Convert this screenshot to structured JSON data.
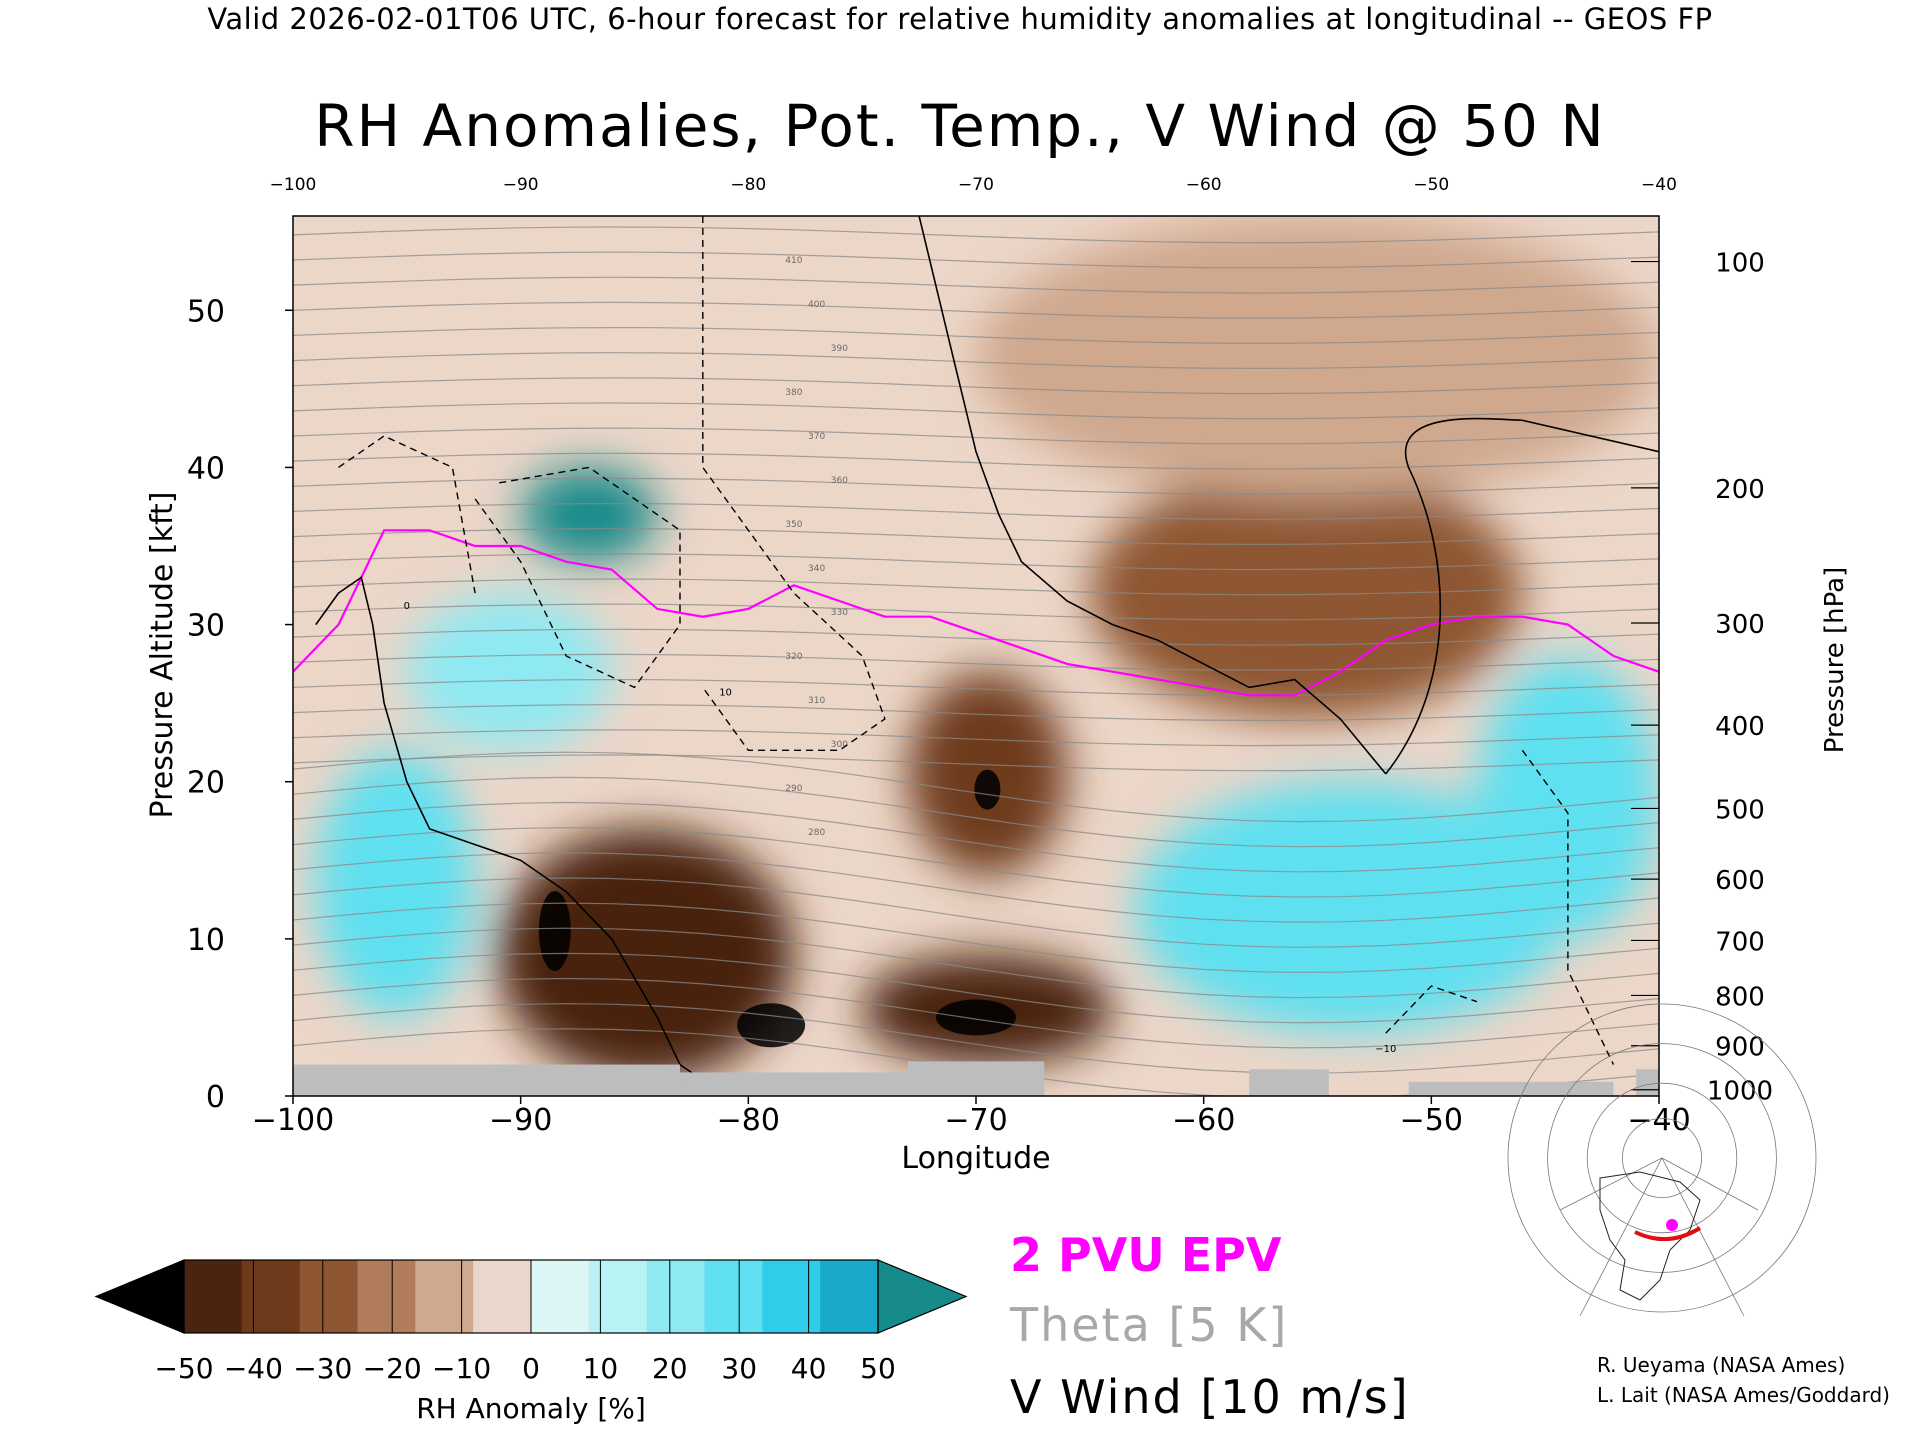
{
  "header": "Valid 2026-02-01T06 UTC, 6-hour forecast for relative humidity anomalies at longitudinal -- GEOS FP",
  "chart_data": {
    "type": "heatmap",
    "title": "RH Anomalies, Pot. Temp., V Wind @ 50 N",
    "xlabel": "Longitude",
    "ylabel": "Pressure Altitude [kft]",
    "y2label": "Pressure [hPa]",
    "xlim": [
      -100,
      -40
    ],
    "ylim": [
      0,
      56
    ],
    "x_ticks": [
      -100,
      -90,
      -80,
      -70,
      -60,
      -50,
      -40
    ],
    "x_tick_labels": [
      "−100",
      "−90",
      "−80",
      "−70",
      "−60",
      "−50",
      "−40"
    ],
    "top_tick_labels": [
      "−100",
      "−90",
      "−80",
      "−70",
      "−60",
      "−50",
      "−40"
    ],
    "y_ticks": [
      0,
      10,
      20,
      30,
      40,
      50
    ],
    "y_tick_labels": [
      "0",
      "10",
      "20",
      "30",
      "40",
      "50"
    ],
    "pressure_ticks": [
      {
        "hPa": 100,
        "kft": 53.1,
        "label": "100"
      },
      {
        "hPa": 200,
        "kft": 38.7,
        "label": "200"
      },
      {
        "hPa": 300,
        "kft": 30.1,
        "label": "300"
      },
      {
        "hPa": 400,
        "kft": 23.6,
        "label": "400"
      },
      {
        "hPa": 500,
        "kft": 18.3,
        "label": "500"
      },
      {
        "hPa": 600,
        "kft": 13.8,
        "label": "600"
      },
      {
        "hPa": 700,
        "kft": 9.9,
        "label": "700"
      },
      {
        "hPa": 800,
        "kft": 6.4,
        "label": "800"
      },
      {
        "hPa": 900,
        "kft": 3.2,
        "label": "900"
      },
      {
        "hPa": 1000,
        "kft": 0.4,
        "label": "1000"
      }
    ],
    "colorbar": {
      "label": "RH Anomaly [%]",
      "tick_labels": [
        "−50",
        "−40",
        "−30",
        "−20",
        "−10",
        "0",
        "10",
        "20",
        "30",
        "40",
        "50"
      ],
      "colors": [
        "#000000",
        "#4a2410",
        "#6e3a1c",
        "#8e5632",
        "#b07c5c",
        "#cfa88e",
        "#ead6ca",
        "#dcf6f5",
        "#b8f2f4",
        "#8fe9f2",
        "#5ee0f0",
        "#30cdea",
        "#18a8c8",
        "#178a8a"
      ]
    },
    "rh_anomaly_regions": [
      {
        "x": [
          -90,
          -84
        ],
        "y": [
          34,
          40
        ],
        "value": 55
      },
      {
        "x": [
          -99,
          -92
        ],
        "y": [
          5,
          22
        ],
        "value": 38
      },
      {
        "x": [
          -95,
          -86
        ],
        "y": [
          22,
          32
        ],
        "value": 28
      },
      {
        "x": [
          -91,
          -78
        ],
        "y": [
          1,
          17
        ],
        "value": -42
      },
      {
        "x": [
          -75,
          -64
        ],
        "y": [
          2,
          9
        ],
        "value": -45
      },
      {
        "x": [
          -73,
          -66
        ],
        "y": [
          14,
          27
        ],
        "value": -32
      },
      {
        "x": [
          -65,
          -46
        ],
        "y": [
          24,
          40
        ],
        "value": -25
      },
      {
        "x": [
          -63,
          -44
        ],
        "y": [
          4,
          20
        ],
        "value": 30
      },
      {
        "x": [
          -48,
          -40
        ],
        "y": [
          10,
          28
        ],
        "value": 38
      },
      {
        "x": [
          -70,
          -40
        ],
        "y": [
          38,
          56
        ],
        "value": -8
      }
    ],
    "series": [
      {
        "name": "2 PVU EPV",
        "x": [
          -100,
          -98,
          -96,
          -94,
          -92,
          -90,
          -88,
          -86,
          -84,
          -82,
          -80,
          -78,
          -76,
          -74,
          -72,
          -70,
          -68,
          -66,
          -64,
          -62,
          -60,
          -58,
          -56,
          -54,
          -52,
          -50,
          -48,
          -46,
          -44,
          -42,
          -40
        ],
        "y": [
          27,
          30,
          36,
          36,
          35,
          35,
          34,
          33.5,
          31,
          30.5,
          31,
          32.5,
          31.5,
          30.5,
          30.5,
          29.5,
          28.5,
          27.5,
          27,
          26.5,
          26,
          25.5,
          25.5,
          27,
          29,
          30,
          30.5,
          30.5,
          30,
          28,
          27
        ]
      },
      {
        "name": "V Wind 0 m/s",
        "x": [
          -99,
          -98,
          -97,
          -96.5,
          -96,
          -95,
          -94,
          -92,
          -90,
          -88,
          -86,
          -84,
          -83,
          -82
        ],
        "y": [
          30,
          32,
          33,
          30,
          25,
          20,
          17,
          16,
          15,
          13,
          10,
          5,
          2,
          1
        ]
      },
      {
        "name": "V Wind 0 m/s (upper)",
        "x": [
          -72.5,
          -71,
          -70,
          -69,
          -68,
          -66,
          -64,
          -62,
          -60,
          -58,
          -56,
          -54,
          -52
        ],
        "y": [
          56,
          47,
          41,
          37,
          34,
          31.5,
          30,
          29,
          27.5,
          26,
          26.5,
          24,
          20.5
        ]
      }
    ],
    "theta_labels": [
      "410",
      "400",
      "390",
      "380",
      "370",
      "360",
      "350",
      "340",
      "330",
      "320",
      "310",
      "300",
      "290",
      "280"
    ],
    "vwind_labels": [
      "0",
      "10",
      "−10"
    ]
  },
  "legend": {
    "pvu": "2 PVU EPV",
    "theta": "Theta [5 K]",
    "vwind": "V Wind [10 m/s]"
  },
  "credits": [
    "R. Ueyama (NASA Ames)",
    "L. Lait (NASA Ames/Goddard)"
  ]
}
